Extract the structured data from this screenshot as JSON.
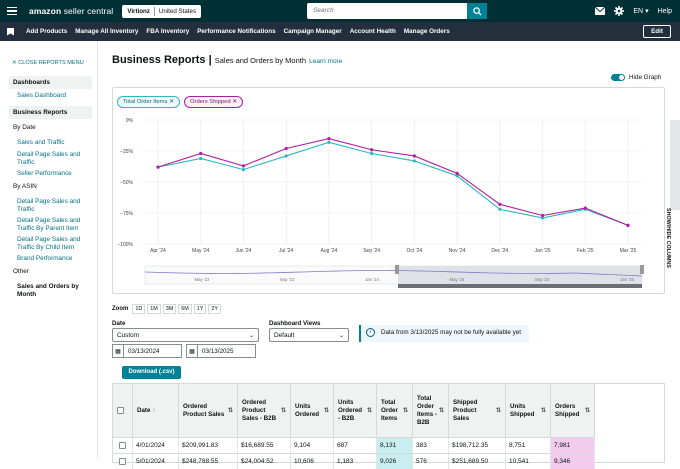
{
  "topbar": {
    "logo_bold": "amazon",
    "logo_rest": " seller central",
    "account": "Virtionz",
    "marketplace": "United States",
    "search_placeholder": "Search",
    "language": "EN",
    "help": "Help"
  },
  "navbar": {
    "items": [
      "Add Products",
      "Manage All Inventory",
      "FBA Inventory",
      "Performance Notifications",
      "Campaign Manager",
      "Account Health",
      "Manage Orders"
    ],
    "edit": "Edit"
  },
  "sidebar": {
    "close": "CLOSE REPORTS MENU",
    "dashboards": "Dashboards",
    "sales_dashboard": "Sales Dashboard",
    "business_reports": "Business Reports",
    "by_date": "By Date",
    "by_date_links": [
      "Sales and Traffic",
      "Detail Page Sales and Traffic",
      "Seller Performance"
    ],
    "by_asin": "By ASIN",
    "by_asin_links": [
      "Detail Page Sales and Traffic",
      "Detail Page Sales and Traffic By Parent Item",
      "Detail Page Sales and Traffic By Child Item",
      "Brand Performance"
    ],
    "other": "Other",
    "active": "Sales and Orders by Month"
  },
  "header": {
    "title": "Business Reports",
    "subtitle": "Sales and Orders by Month",
    "learn_more": "Learn more",
    "hide_graph": "Hide Graph",
    "show_hide_columns": "SHOW/HIDE COLUMNS"
  },
  "pills": [
    "Total Order Items",
    "Orders Shipped"
  ],
  "colors": {
    "teal": "#31b5bf",
    "magenta": "#b01ea0",
    "brand": "#008296",
    "nav": "#232f3e",
    "top": "#002f36"
  },
  "chart_data": {
    "type": "line",
    "categories": [
      "Apr '24",
      "May '24",
      "Jun '24",
      "Jul '24",
      "Aug '24",
      "Sep '24",
      "Oct '24",
      "Nov '24",
      "Dec '24",
      "Jan '25",
      "Feb '25",
      "Mar '25"
    ],
    "yticks": [
      "0%",
      "−25%",
      "−50%",
      "−75%",
      "−100%"
    ],
    "ylim": [
      -100,
      0
    ],
    "series": [
      {
        "name": "Total Order Items",
        "color": "#31b5bf",
        "values": [
          -38,
          -31,
          -40,
          -29,
          -18,
          -27,
          -33,
          -45,
          -72,
          -79,
          -72,
          -85
        ]
      },
      {
        "name": "Orders Shipped",
        "color": "#b01ea0",
        "values": [
          -38,
          -27,
          -37,
          -23,
          -15,
          -24,
          -29,
          -43,
          -68,
          -77,
          -71,
          -85
        ]
      }
    ],
    "navigator_labels": [
      "May '23",
      "Sep '23",
      "Jan '24",
      "May '24",
      "Sep '24",
      "Jan '25"
    ]
  },
  "controls": {
    "zoom_label": "Zoom",
    "zoom_options": [
      "1D",
      "1M",
      "3M",
      "6M",
      "1Y",
      "2Y"
    ],
    "date_label": "Date",
    "date_value": "Custom",
    "dashboard_views_label": "Dashboard Views",
    "dashboard_views_value": "Default",
    "info": "Data from 3/13/2025 may not be fully available yet",
    "start_date": "03/13/2024",
    "end_date": "03/13/2025",
    "download": "Download (.csv)"
  },
  "table": {
    "headers": [
      "Date",
      "Ordered Product Sales",
      "Ordered Product Sales - B2B",
      "Units Ordered",
      "Units Ordered - B2B",
      "Total Order Items",
      "Total Order Items - B2B",
      "Shipped Product Sales",
      "Units Shipped",
      "Orders Shipped"
    ],
    "rows": [
      [
        "4/01/2024",
        "$209,991.83",
        "$16,689.55",
        "9,104",
        "687",
        "8,131",
        "383",
        "$198,712.35",
        "8,751",
        "7,981"
      ],
      [
        "5/01/2024",
        "$248,788.55",
        "$24,004.52",
        "10,606",
        "1,183",
        "9,026",
        "576",
        "$251,689.50",
        "10,541",
        "9,346"
      ]
    ]
  }
}
